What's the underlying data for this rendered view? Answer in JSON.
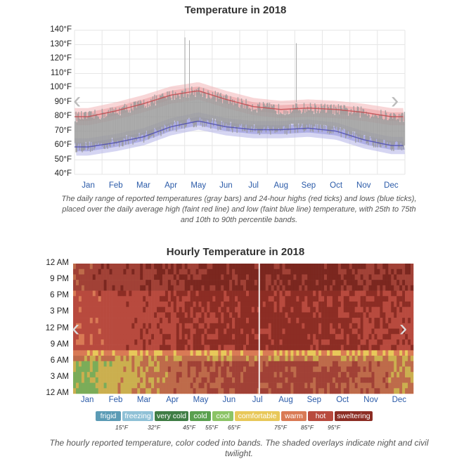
{
  "chart_data": [
    {
      "type": "area",
      "title": "Temperature in 2018",
      "y_ticks": [
        "40°F",
        "50°F",
        "60°F",
        "70°F",
        "80°F",
        "90°F",
        "100°F",
        "110°F",
        "120°F",
        "130°F",
        "140°F"
      ],
      "ylim": [
        40,
        140
      ],
      "months": [
        "Jan",
        "Feb",
        "Mar",
        "Apr",
        "May",
        "Jun",
        "Jul",
        "Aug",
        "Sep",
        "Oct",
        "Nov",
        "Dec"
      ],
      "avg_high": [
        80,
        84,
        89,
        95,
        98,
        92,
        87,
        85,
        86,
        85,
        83,
        80
      ],
      "avg_low": [
        59,
        62,
        66,
        73,
        77,
        73,
        71,
        71,
        72,
        70,
        64,
        60
      ],
      "grid": true,
      "caption": "The daily range of reported temperatures (gray bars) and 24-hour highs (red ticks) and lows (blue ticks), placed over the daily average high (faint red line) and low (faint blue line) temperature, with 25th to 75th and 10th to 90th percentile bands.",
      "colors": {
        "range": "#9a9a9a",
        "high": "#c0474b",
        "low": "#4b4bb0",
        "high_band": "#f3b4b6",
        "low_band": "#b3b3e8"
      }
    },
    {
      "type": "heatmap",
      "title": "Hourly Temperature in 2018",
      "y_ticks": [
        "12 AM",
        "3 AM",
        "6 AM",
        "9 AM",
        "12 PM",
        "3 PM",
        "6 PM",
        "9 PM",
        "12 AM"
      ],
      "months": [
        "Jan",
        "Feb",
        "Mar",
        "Apr",
        "May",
        "Jun",
        "Jul",
        "Aug",
        "Sep",
        "Oct",
        "Nov",
        "Dec"
      ],
      "caption": "The hourly reported temperature, color coded into bands. The shaded overlays indicate night and civil twilight.",
      "legend": [
        {
          "label": "frigid",
          "color": "#5b9bb5"
        },
        {
          "label": "freezing",
          "color": "#8fc1d6"
        },
        {
          "label": "very cold",
          "color": "#3f7d45"
        },
        {
          "label": "cold",
          "color": "#5aa04f"
        },
        {
          "label": "cool",
          "color": "#8cc466"
        },
        {
          "label": "comfortable",
          "color": "#e8c85a"
        },
        {
          "label": "warm",
          "color": "#d97a55"
        },
        {
          "label": "hot",
          "color": "#b84a3e"
        },
        {
          "label": "sweltering",
          "color": "#8c2d24"
        }
      ],
      "thresholds": [
        "15°F",
        "32°F",
        "45°F",
        "55°F",
        "65°F",
        "75°F",
        "85°F",
        "95°F"
      ]
    }
  ]
}
